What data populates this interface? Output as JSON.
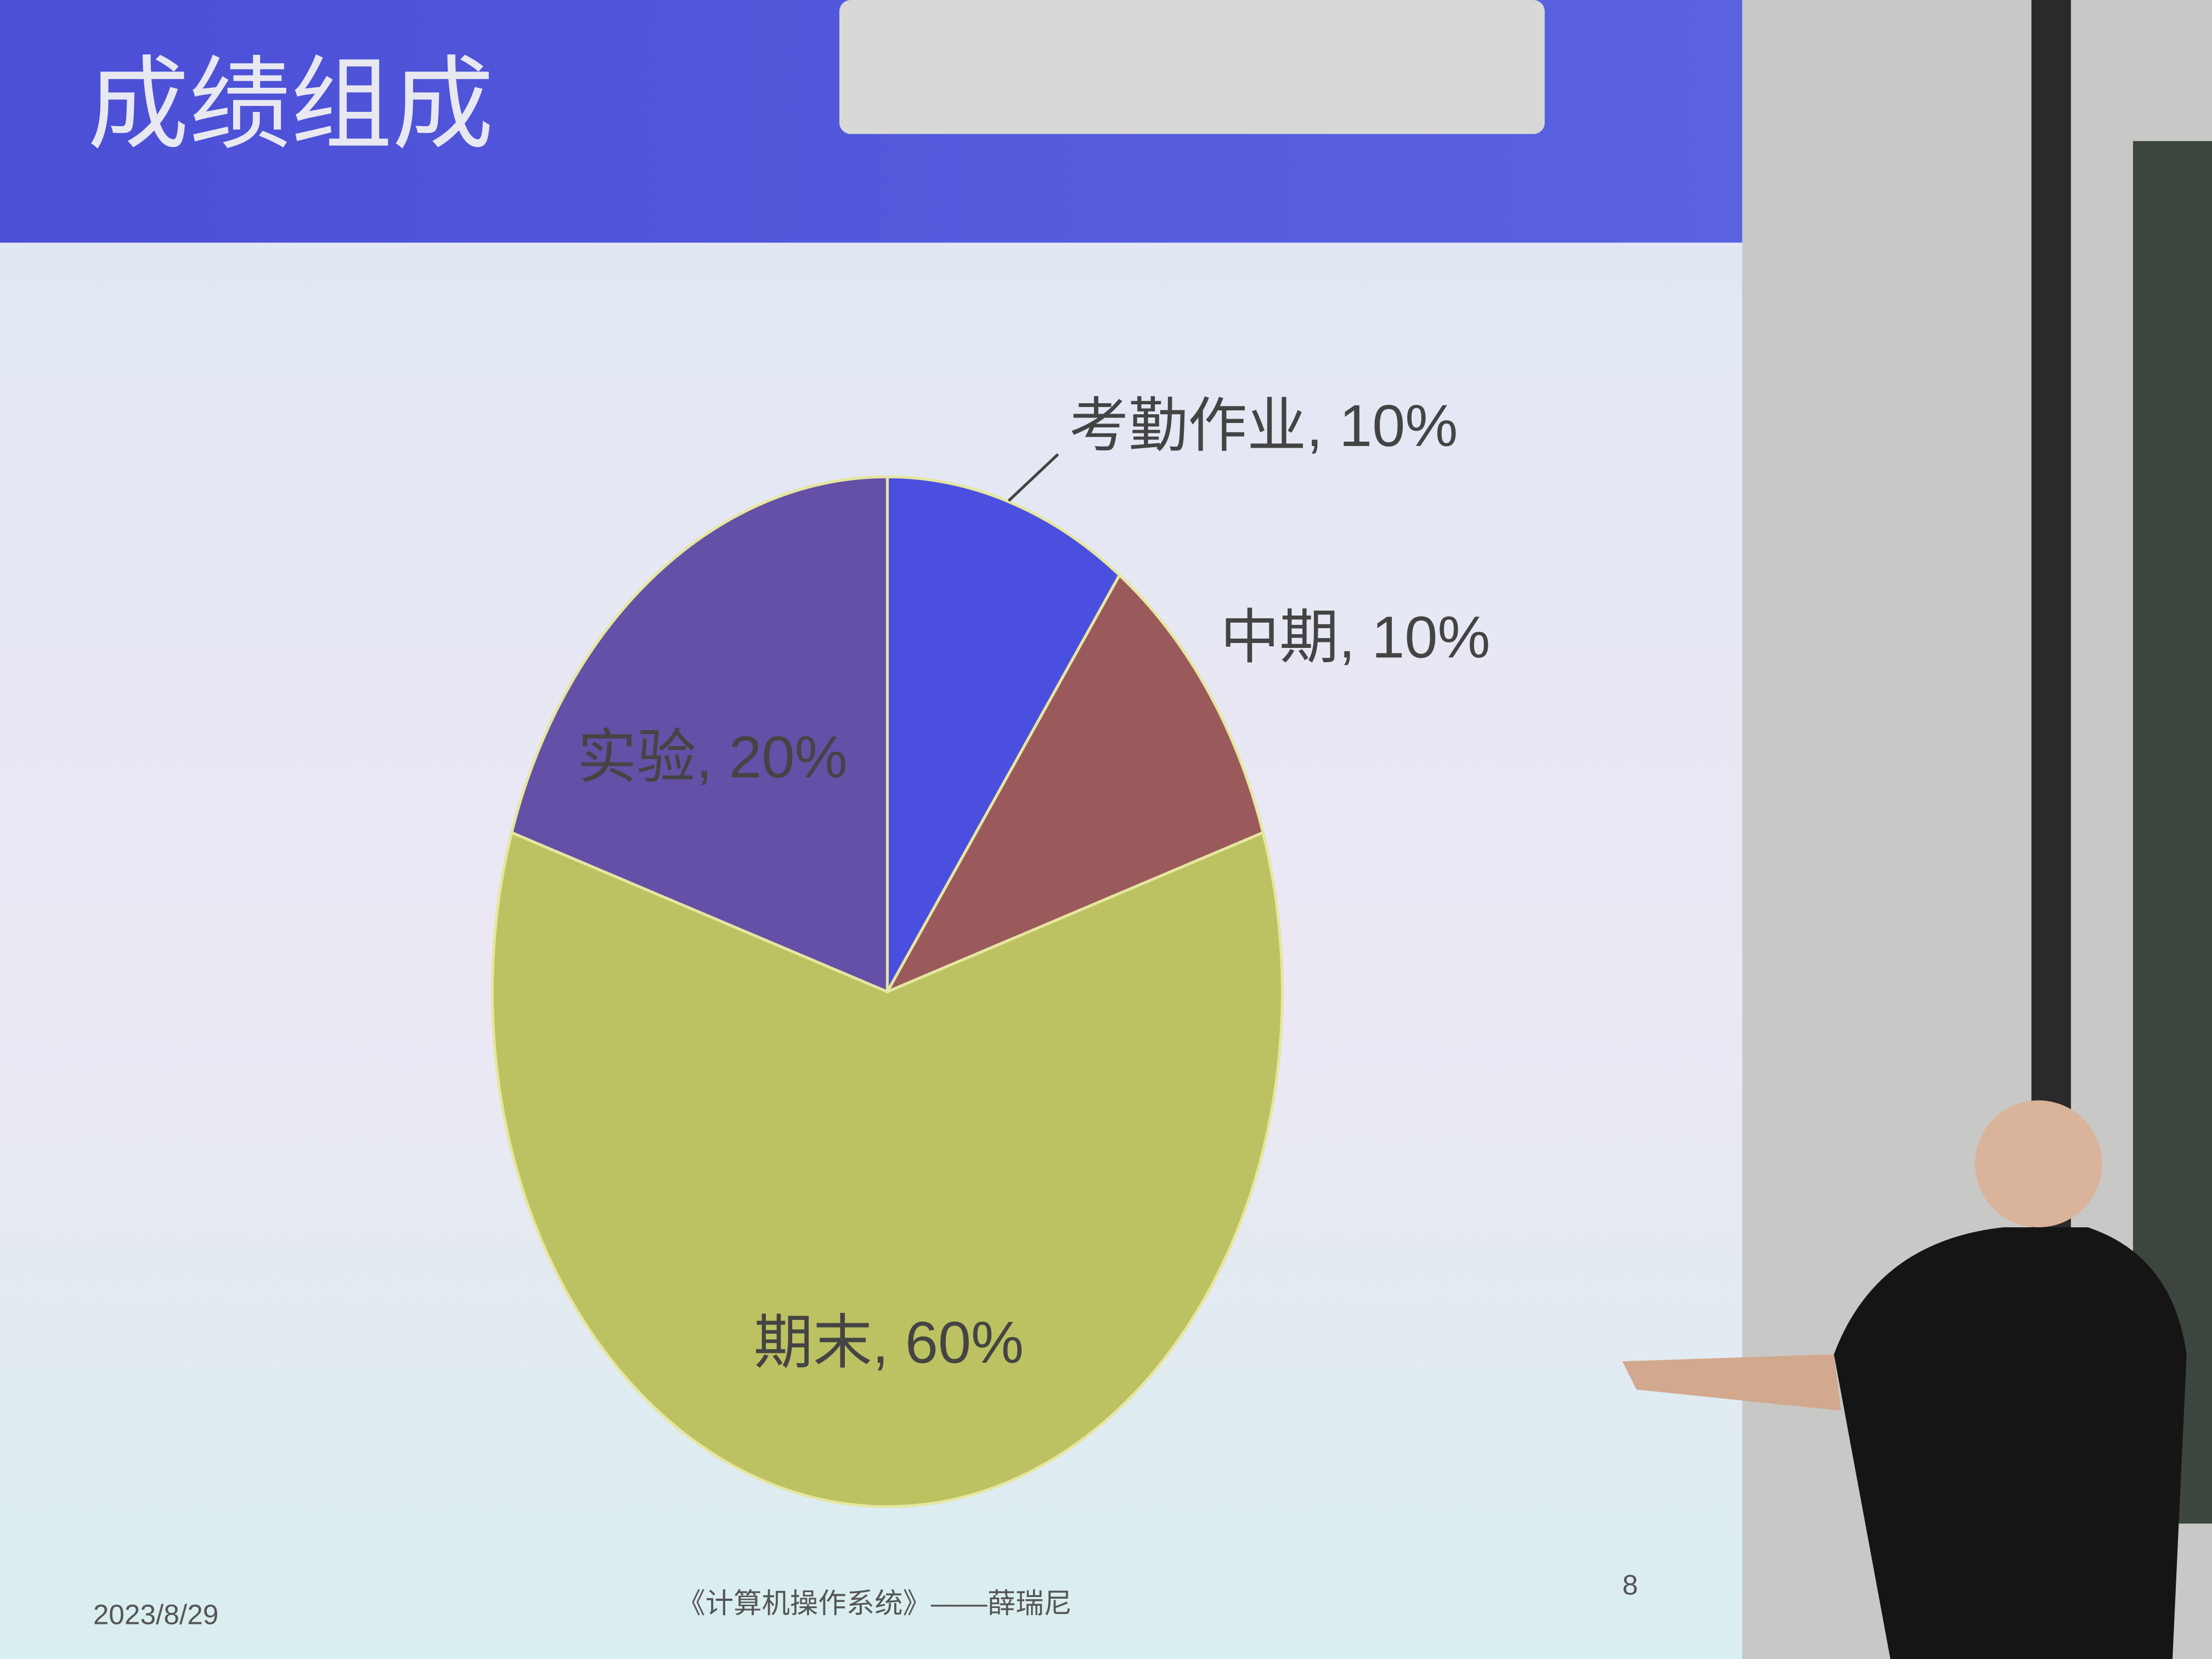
{
  "chart_data": {
    "type": "pie",
    "title": "成绩组成",
    "categories": [
      "考勤作业",
      "中期",
      "期末",
      "实验"
    ],
    "values": [
      10,
      10,
      60,
      20
    ],
    "value_labels": [
      "考勤作业, 10%",
      "中期, 10%",
      "期末, 60%",
      "实验, 20%"
    ],
    "colors": [
      "#4b4fe0",
      "#9a5a5c",
      "#bcc262",
      "#6450a6"
    ]
  },
  "slide": {
    "date": "2023/8/29",
    "footer": "《计算机操作系统》——薛瑞尼",
    "page": "8"
  }
}
